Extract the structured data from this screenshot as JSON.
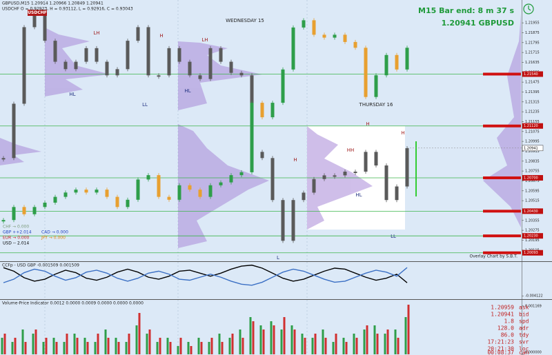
{
  "header": {
    "symbol_line": "GBPUSD,M15 1.20914 1.20966 1.20849 1.20941",
    "overlay_line": "USDCHF O = 0.92923, H = 0.93112, L = 0.92916, C = 0.93043",
    "overlay_tag": "USDCHF",
    "bar_timer": "M15 Bar end: 8 m 37 s",
    "price_symbol": "1.20941  GBPUSD"
  },
  "chart_data": [
    {
      "type": "candlestick",
      "series": [
        {
          "color": "#5a5a5a",
          "values": [
            1.2086,
            1.213,
            1.2192,
            1.2203,
            1.2181,
            1.2164,
            1.2158,
            1.2164,
            1.2175,
            1.2164,
            1.2153,
            1.2158,
            1.2181,
            1.2192,
            1.2153,
            1.2153,
            1.2175,
            1.2164,
            1.2153,
            1.215,
            1.2175,
            1.2164,
            1.2155,
            1.2153,
            1.2091,
            1.2086,
            1.2052,
            1.2019,
            1.2052,
            1.2058,
            1.2069,
            1.2072,
            1.2072,
            1.2075,
            1.2075,
            1.2091,
            1.208,
            1.2052,
            1.2063,
            1.2094
          ]
        },
        {
          "axis": "y2",
          "color": "#2e9e4a",
          "down_color": "#e8a030",
          "values": [
            0.9218,
            0.9227,
            0.9222,
            0.9227,
            0.923,
            0.9234,
            0.9237,
            0.9239,
            0.9237,
            0.9239,
            0.9234,
            0.9227,
            0.9232,
            0.9246,
            0.9249,
            0.9234,
            0.9232,
            0.9242,
            0.9239,
            0.9234,
            0.9242,
            0.9244,
            0.9249,
            0.9251,
            0.9299,
            0.9289,
            0.9299,
            0.9322,
            0.9351,
            0.9356,
            0.9346,
            0.9344,
            0.9346,
            0.9341,
            0.9337,
            0.9303,
            0.9318,
            0.9332,
            0.9322,
            0.9337
          ]
        }
      ],
      "ylim": [
        1.2003,
        1.2214
      ],
      "yticks": [
        1.21955,
        1.21875,
        1.21795,
        1.21715,
        1.21635,
        1.21555,
        1.21475,
        1.21395,
        1.21315,
        1.21235,
        1.21155,
        1.21075,
        1.20995,
        1.20915,
        1.20835,
        1.20755,
        1.20675,
        1.20595,
        1.20515,
        1.20435,
        1.20355,
        1.20275,
        1.20195,
        1.20115
      ],
      "y2lim": [
        0.919,
        0.937
      ],
      "levels": [
        {
          "value": 1.2154,
          "label": "1.21540"
        },
        {
          "value": 1.2112,
          "label": "1.21120"
        },
        {
          "value": 1.207,
          "label": "1.20700"
        },
        {
          "value": 1.2043,
          "label": "1.20430"
        },
        {
          "value": 1.2023,
          "label": "1.20230"
        },
        1.20093
      ],
      "current_price": 1.20941
    },
    {
      "type": "line",
      "title": "CCFp - USD GBP -0.001509 0.001509",
      "series": [
        {
          "color": "#000000",
          "values": [
            0.0015,
            0.0008,
            -0.0005,
            -0.0012,
            -0.0008,
            0.0002,
            0.001,
            0.0005,
            -0.0006,
            -0.001,
            -0.0004,
            0.0006,
            0.0012,
            0.0006,
            -0.0004,
            -0.0008,
            -0.0002,
            0.0008,
            0.001,
            0.0004,
            -0.0002,
            0.0004,
            0.0012,
            0.0018,
            0.002,
            0.0014,
            0.0004,
            -0.0006,
            -0.0012,
            -0.0008,
            0.0,
            0.0008,
            0.0014,
            0.0012,
            0.0004,
            -0.0004,
            -0.001,
            -0.0006,
            0.0002,
            -0.001509
          ]
        },
        {
          "color": "#3a6fc4",
          "values": [
            -0.0015,
            -0.0008,
            0.0005,
            0.0012,
            0.0008,
            -0.0002,
            -0.001,
            -0.0005,
            0.0006,
            0.001,
            0.0004,
            -0.0006,
            -0.0012,
            -0.0006,
            0.0004,
            0.0008,
            0.0002,
            -0.0008,
            -0.001,
            -0.0004,
            0.0002,
            -0.0004,
            -0.0012,
            -0.0018,
            -0.002,
            -0.0014,
            -0.0004,
            0.0006,
            0.0012,
            0.0008,
            0.0,
            -0.0008,
            -0.0014,
            -0.0012,
            -0.0004,
            0.0004,
            0.001,
            0.0006,
            -0.0002,
            0.001509
          ]
        }
      ],
      "ylim": [
        -0.0045,
        0.0025
      ],
      "yticks": [
        -0.004122
      ]
    },
    {
      "type": "bar",
      "title": "Volume-Price Indicator 0.0012 0.0000 0.0009 0.0000 0.0000 0.0000",
      "series": [
        {
          "color": "#2e9e4a",
          "values": [
            0.0004,
            0.0003,
            0.0006,
            0.0005,
            0.0003,
            0.0004,
            0.0003,
            0.0005,
            0.0004,
            0.0003,
            0.0006,
            0.0004,
            0.0003,
            0.0007,
            0.0005,
            0.0003,
            0.0004,
            0.0002,
            0.0003,
            0.0004,
            0.0003,
            0.0005,
            0.0004,
            0.0006,
            0.0009,
            0.0007,
            0.0008,
            0.0006,
            0.0007,
            0.0005,
            0.0004,
            0.0006,
            0.0003,
            0.0004,
            0.0005,
            0.0006,
            0.0007,
            0.0005,
            0.0006,
            0.0009
          ]
        },
        {
          "color": "#d03030",
          "values": [
            0.0005,
            0.0004,
            0.0003,
            0.0006,
            0.0004,
            0.0003,
            0.0005,
            0.0004,
            0.0003,
            0.0005,
            0.0004,
            0.0003,
            0.0005,
            0.001,
            0.0006,
            0.0004,
            0.0003,
            0.0004,
            0.0002,
            0.0003,
            0.0004,
            0.0003,
            0.0005,
            0.0004,
            0.0008,
            0.0006,
            0.0007,
            0.0009,
            0.0006,
            0.0004,
            0.0005,
            0.0004,
            0.0005,
            0.0003,
            0.0004,
            0.0007,
            0.0005,
            0.0006,
            0.0004,
            0.0012
          ]
        }
      ],
      "ylim": [
        0,
        0.0013
      ],
      "yticks": [
        {
          "value": 0,
          "label": "0.000000"
        },
        0.001169
      ]
    }
  ],
  "annotations": [
    "WEDNESDAY 15",
    "THURSDAY 16",
    "LH",
    "H",
    "LH",
    "HL",
    "LL",
    "HL",
    "H",
    "HH",
    "HL",
    "LL",
    "H",
    "H",
    "L"
  ],
  "currency_strength": [
    "CHF → 0.000",
    "GBP ++2.014",
    "EUR → 0.000",
    "USD -- 2.014",
    "CAD → 0.000",
    "JPY → 0.000"
  ],
  "overlay_credit": "Overlay Chart by S.B.T.",
  "info": [
    [
      "1.20959",
      "ask"
    ],
    [
      "1.20941",
      "bid"
    ],
    [
      "1.8",
      "spd"
    ],
    [
      "128.0",
      "adr"
    ],
    [
      "86.0",
      "tdy"
    ],
    [
      "17:21:23",
      "svr"
    ],
    [
      "20:21:30",
      "loc"
    ],
    [
      "00:08:37",
      "can"
    ]
  ]
}
